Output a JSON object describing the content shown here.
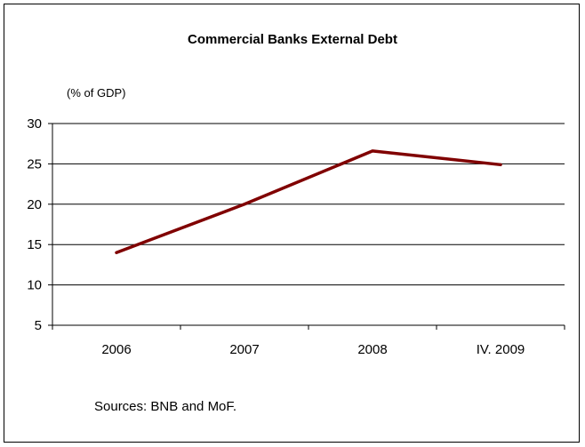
{
  "chart_data": {
    "type": "line",
    "title": "Commercial Banks External Debt",
    "ylabel": "(% of GDP)",
    "xlabel": "",
    "categories": [
      "2006",
      "2007",
      "2008",
      "IV. 2009"
    ],
    "series": [
      {
        "values": [
          14.0,
          20.0,
          26.6,
          24.9
        ]
      }
    ],
    "ylim": [
      5,
      30
    ],
    "yticks": [
      5,
      10,
      15,
      20,
      25,
      30
    ],
    "grid": "horizontal",
    "legend": "none",
    "line_color": "#800000"
  },
  "source_note": "Sources: BNB and MoF."
}
